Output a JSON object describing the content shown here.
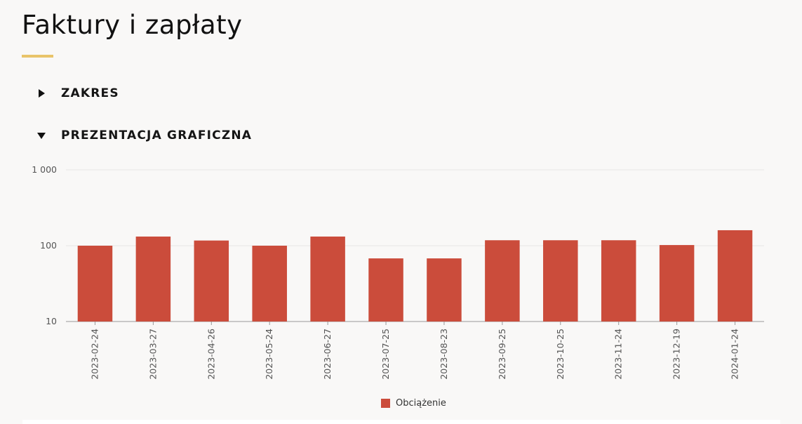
{
  "page": {
    "title": "Faktury i zapłaty",
    "accent_color": "#e9c46a"
  },
  "sections": {
    "zakres": {
      "label": "ZAKRES",
      "expanded": false,
      "icon": "triangle-right-icon"
    },
    "prezentacja": {
      "label": "PREZENTACJA GRAFICZNA",
      "expanded": true,
      "icon": "triangle-down-icon"
    }
  },
  "chart_data": {
    "type": "bar",
    "title": "",
    "xlabel": "",
    "ylabel": "",
    "y_scale": "log",
    "ylim": [
      10,
      1000
    ],
    "y_ticks": [
      10,
      100,
      1000
    ],
    "y_tick_labels": [
      "10",
      "100",
      "1 000"
    ],
    "grid": true,
    "legend_position": "bottom-center",
    "categories": [
      "2023-02-24",
      "2023-03-27",
      "2023-04-26",
      "2023-05-24",
      "2023-06-27",
      "2023-07-25",
      "2023-08-23",
      "2023-09-25",
      "2023-10-25",
      "2023-11-24",
      "2023-12-19",
      "2024-01-24"
    ],
    "series": [
      {
        "name": "Obciążenie",
        "color": "#cb4c3b",
        "values": [
          100,
          132,
          117,
          100,
          132,
          68,
          68,
          118,
          118,
          118,
          102,
          160
        ]
      }
    ]
  }
}
